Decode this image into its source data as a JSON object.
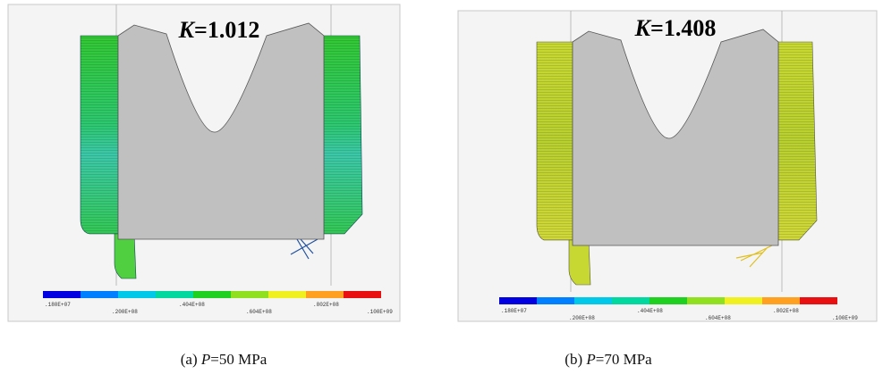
{
  "panels": [
    {
      "k_symbol": "K",
      "k_value": "=1.012",
      "colorbar_labels": [
        ".180E+07",
        ".200E+08",
        ".404E+08",
        ".604E+08",
        ".802E+08",
        ".100E+09"
      ],
      "caption": {
        "label": "(a)",
        "symbol": "P",
        "value": "=50 MPa"
      }
    },
    {
      "k_symbol": "K",
      "k_value": "=1.408",
      "colorbar_labels": [
        ".180E+07",
        ".200E+08",
        ".404E+08",
        ".604E+08",
        ".802E+08",
        ".100E+09"
      ],
      "caption": {
        "label": "(b)",
        "symbol": "P",
        "value": "=70 MPa"
      }
    }
  ]
}
